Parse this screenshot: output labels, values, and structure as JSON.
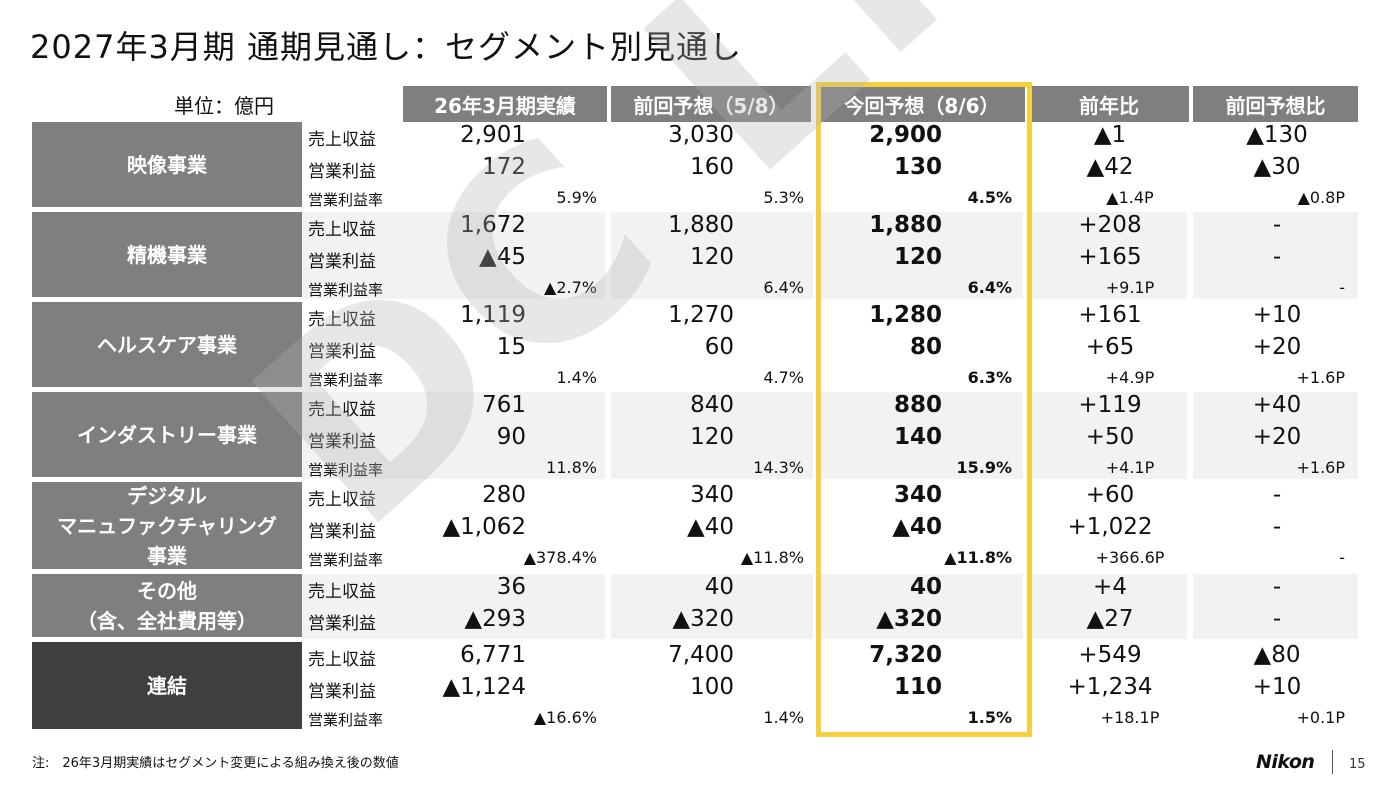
{
  "title": "2027年3月期 通期見通し：セグメント別見通し",
  "unit_label": "単位：億円",
  "columns": [
    "26年3月期実績",
    "前回予想（5/8）",
    "今回予想（8/6）",
    "前年比",
    "前回予想比"
  ],
  "labels": {
    "sales": "売上収益",
    "profit": "営業利益",
    "margin": "営業利益率"
  },
  "segments": [
    {
      "name": "映像事業",
      "sales": [
        "2,901",
        "3,030",
        "2,900",
        "▲1",
        "▲130"
      ],
      "profit": [
        "172",
        "160",
        "130",
        "▲42",
        "▲30"
      ],
      "margin": [
        "5.9%",
        "5.3%",
        "4.5%",
        "▲1.4P",
        "▲0.8P"
      ]
    },
    {
      "name": "精機事業",
      "sales": [
        "1,672",
        "1,880",
        "1,880",
        "+208",
        "-"
      ],
      "profit": [
        "▲45",
        "120",
        "120",
        "+165",
        "-"
      ],
      "margin": [
        "▲2.7%",
        "6.4%",
        "6.4%",
        "+9.1P",
        "-"
      ]
    },
    {
      "name": "ヘルスケア事業",
      "sales": [
        "1,119",
        "1,270",
        "1,280",
        "+161",
        "+10"
      ],
      "profit": [
        "15",
        "60",
        "80",
        "+65",
        "+20"
      ],
      "margin": [
        "1.4%",
        "4.7%",
        "6.3%",
        "+4.9P",
        "+1.6P"
      ]
    },
    {
      "name": "インダストリー事業",
      "sales": [
        "761",
        "840",
        "880",
        "+119",
        "+40"
      ],
      "profit": [
        "90",
        "120",
        "140",
        "+50",
        "+20"
      ],
      "margin": [
        "11.8%",
        "14.3%",
        "15.9%",
        "+4.1P",
        "+1.6P"
      ]
    },
    {
      "name": "デジタル\nマニュファクチャリング\n事業",
      "sales": [
        "280",
        "340",
        "340",
        "+60",
        "-"
      ],
      "profit": [
        "▲1,062",
        "▲40",
        "▲40",
        "+1,022",
        "-"
      ],
      "margin": [
        "▲378.4%",
        "▲11.8%",
        "▲11.8%",
        "+366.6P",
        "-"
      ]
    },
    {
      "name": "その他\n（含、全社費用等）",
      "sales": [
        "36",
        "40",
        "40",
        "+4",
        "-"
      ],
      "profit": [
        "▲293",
        "▲320",
        "▲320",
        "▲27",
        "-"
      ]
    },
    {
      "name": "連結",
      "sales": [
        "6,771",
        "7,400",
        "7,320",
        "+549",
        "▲80"
      ],
      "profit": [
        "▲1,124",
        "100",
        "110",
        "+1,234",
        "+10"
      ],
      "margin": [
        "▲16.6%",
        "1.4%",
        "1.5%",
        "+18.1P",
        "+0.1P"
      ]
    }
  ],
  "colors": {
    "segment_bg": "#7f7f7f",
    "consolidated_bg": "#3f3f3f",
    "band": "#f2f2f2",
    "highlight": "#f5cf3e"
  },
  "watermark": "DC LIFE",
  "footnote": "注:　26年3月期実績はセグメント変更による組み換え後の数値",
  "logo_text": "Nikon",
  "page_number": "15"
}
